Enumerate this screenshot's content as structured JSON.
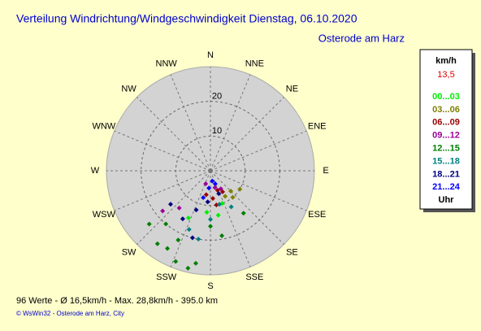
{
  "chart_data": {
    "type": "polar-scatter",
    "title": "Verteilung Windrichtung/Windgeschwindigkeit  Dienstag, 06.10.2020",
    "subtitle": "Osterode am Harz",
    "directions": [
      "N",
      "NNE",
      "NE",
      "ENE",
      "E",
      "ESE",
      "SE",
      "SSE",
      "S",
      "SSW",
      "SW",
      "WSW",
      "W",
      "WNW",
      "NW",
      "NNW"
    ],
    "rlim": [
      0,
      30
    ],
    "rticks": [
      10,
      20
    ],
    "legend_title": "km/h",
    "legend_value": "13,5",
    "legend_footer": "Uhr",
    "series": [
      {
        "name": "00...03",
        "color": "#00ee00",
        "theta": [
          185,
          170,
          205,
          160
        ],
        "r": [
          12,
          13,
          15,
          10
        ]
      },
      {
        "name": "03...06",
        "color": "#808000",
        "theta": [
          135,
          122,
          150,
          140
        ],
        "r": [
          8.3,
          10,
          8.5,
          10
        ]
      },
      {
        "name": "06...09",
        "color": "#990000",
        "theta": [
          160,
          175,
          150,
          190,
          170
        ],
        "r": [
          6,
          8,
          7,
          7,
          10
        ]
      },
      {
        "name": "09...12",
        "color": "#990099",
        "theta": [
          165,
          230,
          220,
          200,
          150
        ],
        "r": [
          5,
          18,
          14,
          4,
          6
        ]
      },
      {
        "name": "12...15",
        "color": "#008000",
        "theta": [
          229,
          216,
          209,
          201,
          193,
          189,
          170,
          142,
          220,
          205,
          180
        ],
        "r": [
          23.4,
          26,
          25.6,
          28,
          28.8,
          27,
          19,
          15.5,
          20,
          22,
          16
        ]
      },
      {
        "name": "15...18",
        "color": "#008080",
        "theta": [
          165,
          180,
          200,
          150,
          190
        ],
        "r": [
          10,
          14,
          18,
          12,
          20
        ]
      },
      {
        "name": "18...21",
        "color": "#000080",
        "theta": [
          200,
          210,
          185,
          160,
          230,
          195
        ],
        "r": [
          12,
          16,
          9,
          7,
          15,
          20
        ]
      },
      {
        "name": "21...24",
        "color": "#0000ff",
        "theta": [
          170,
          185,
          160,
          195
        ],
        "r": [
          3,
          5,
          4,
          8
        ]
      }
    ],
    "footer": "96 Werte  -  Ø 16,5km/h  -  Max. 28,8km/h  -  395.0 km",
    "credit": "© WsWin32  -  Osterode am Harz, City"
  }
}
